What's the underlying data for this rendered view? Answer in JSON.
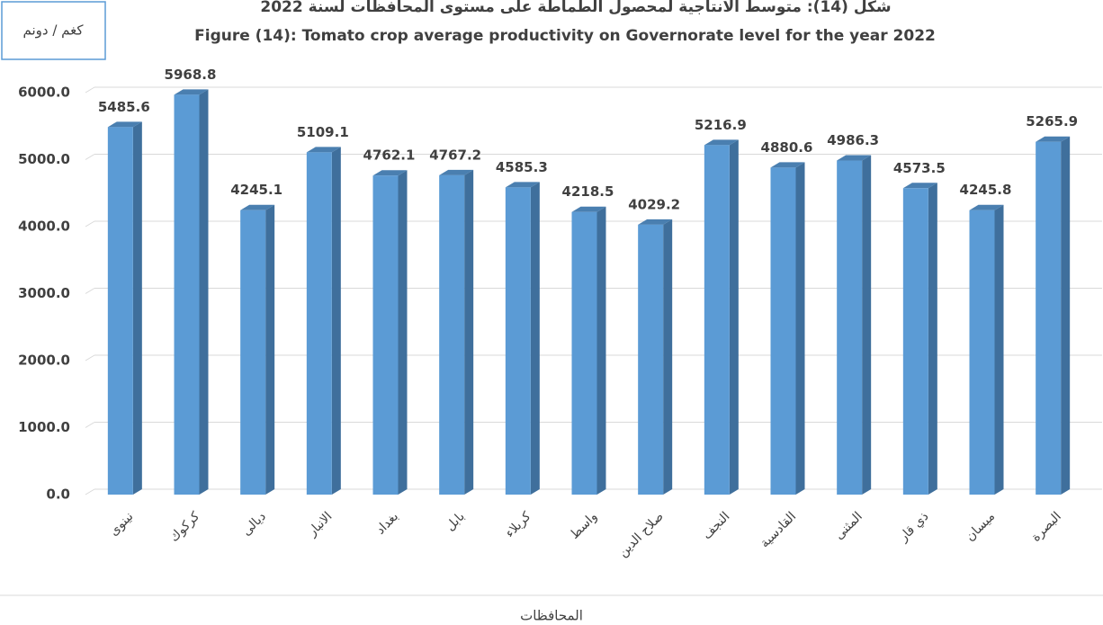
{
  "chart_data": {
    "type": "bar3d",
    "title": "شكل (14): متوسط الانتاجية لمحصول الطماطة على مستوى المحافظات لسنة 2022",
    "subtitle": "Figure (14): Tomato crop average  productivity on Governorate level for the year 2022",
    "unit_label": "كغم / دونم",
    "x_label": "المحافظات",
    "categories": [
      "نينوى",
      "كركوك",
      "ديالى",
      "الانبار",
      "بغداد",
      "بابل",
      "كربلاء",
      "واسط",
      "صلاح الدين",
      "النجف",
      "القادسية",
      "المثنى",
      "ذي قار",
      "ميسان",
      "البصرة"
    ],
    "values": [
      5485.6,
      5968.8,
      4245.1,
      5109.1,
      4762.1,
      4767.2,
      4585.3,
      4218.5,
      4029.2,
      5216.9,
      4880.6,
      4986.3,
      4573.5,
      4245.8,
      5265.9
    ],
    "color": "#5b9bd5",
    "ylim": [
      0,
      6000
    ],
    "yticks": [
      {
        "value": 0,
        "label": "0.0"
      },
      {
        "value": 1000,
        "label": "1000.0"
      },
      {
        "value": 2000,
        "label": "2000.0"
      },
      {
        "value": 3000,
        "label": "3000.0"
      },
      {
        "value": 4000,
        "label": "4000.0"
      },
      {
        "value": 5000,
        "label": "5000.0"
      },
      {
        "value": 6000,
        "label": "6000.0"
      }
    ],
    "grid": true
  }
}
